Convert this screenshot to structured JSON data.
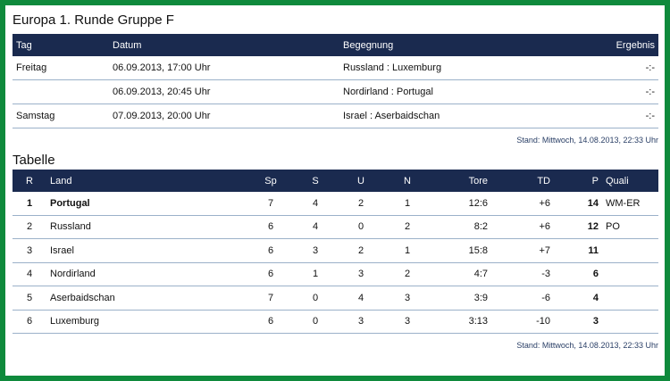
{
  "title": "Europa 1. Runde Gruppe F",
  "fixtures": {
    "headers": {
      "tag": "Tag",
      "datum": "Datum",
      "begegnung": "Begegnung",
      "ergebnis": "Ergebnis"
    },
    "rows": [
      {
        "tag": "Freitag",
        "datum": "06.09.2013, 17:00 Uhr",
        "begegnung": "Russland : Luxemburg",
        "ergebnis": "-:-"
      },
      {
        "tag": "",
        "datum": "06.09.2013, 20:45 Uhr",
        "begegnung": "Nordirland : Portugal",
        "ergebnis": "-:-"
      },
      {
        "tag": "Samstag",
        "datum": "07.09.2013, 20:00 Uhr",
        "begegnung": "Israel : Aserbaidschan",
        "ergebnis": "-:-"
      }
    ],
    "stand": "Stand: Mittwoch, 14.08.2013, 22:33 Uhr"
  },
  "tabelle": {
    "title": "Tabelle",
    "headers": {
      "r": "R",
      "land": "Land",
      "sp": "Sp",
      "s": "S",
      "u": "U",
      "n": "N",
      "tore": "Tore",
      "td": "TD",
      "p": "P",
      "quali": "Quali"
    },
    "rows": [
      {
        "r": "1",
        "land": "Portugal",
        "sp": "7",
        "s": "4",
        "u": "2",
        "n": "1",
        "tore": "12:6",
        "td": "+6",
        "p": "14",
        "quali": "WM-ER"
      },
      {
        "r": "2",
        "land": "Russland",
        "sp": "6",
        "s": "4",
        "u": "0",
        "n": "2",
        "tore": "8:2",
        "td": "+6",
        "p": "12",
        "quali": "PO"
      },
      {
        "r": "3",
        "land": "Israel",
        "sp": "6",
        "s": "3",
        "u": "2",
        "n": "1",
        "tore": "15:8",
        "td": "+7",
        "p": "11",
        "quali": ""
      },
      {
        "r": "4",
        "land": "Nordirland",
        "sp": "6",
        "s": "1",
        "u": "3",
        "n": "2",
        "tore": "4:7",
        "td": "-3",
        "p": "6",
        "quali": ""
      },
      {
        "r": "5",
        "land": "Aserbaidschan",
        "sp": "7",
        "s": "0",
        "u": "4",
        "n": "3",
        "tore": "3:9",
        "td": "-6",
        "p": "4",
        "quali": ""
      },
      {
        "r": "6",
        "land": "Luxemburg",
        "sp": "6",
        "s": "0",
        "u": "3",
        "n": "3",
        "tore": "3:13",
        "td": "-10",
        "p": "3",
        "quali": ""
      }
    ],
    "stand": "Stand: Mittwoch, 14.08.2013, 22:33 Uhr"
  }
}
